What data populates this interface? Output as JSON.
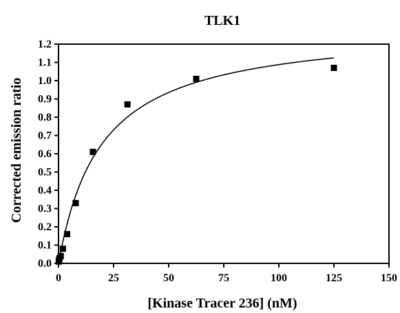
{
  "chart_data": {
    "type": "scatter",
    "title": "TLK1",
    "xlabel": "[Kinase Tracer 236] (nM)",
    "ylabel": "Corrected emission ratio",
    "xlim": [
      0,
      150
    ],
    "ylim": [
      0,
      1.2
    ],
    "x_ticks": [
      "0",
      "25",
      "50",
      "75",
      "100",
      "125",
      "150"
    ],
    "y_ticks": [
      "0.0",
      "0.1",
      "0.2",
      "0.3",
      "0.4",
      "0.5",
      "0.6",
      "0.7",
      "0.8",
      "0.9",
      "1.0",
      "1.1",
      "1.2"
    ],
    "grid": false,
    "series": [
      {
        "marker": "square",
        "color": "#000000",
        "points": [
          {
            "x": 0.1,
            "y": 0.01
          },
          {
            "x": 0.25,
            "y": 0.02
          },
          {
            "x": 0.5,
            "y": 0.03
          },
          {
            "x": 1.0,
            "y": 0.04
          },
          {
            "x": 2.0,
            "y": 0.08
          },
          {
            "x": 3.9,
            "y": 0.16
          },
          {
            "x": 7.8,
            "y": 0.33
          },
          {
            "x": 15.6,
            "y": 0.61
          },
          {
            "x": 31.3,
            "y": 0.87
          },
          {
            "x": 62.5,
            "y": 1.01
          },
          {
            "x": 125,
            "y": 1.07
          }
        ]
      }
    ],
    "fit_curve": {
      "model": "one-site binding",
      "bmax": 1.3,
      "kd": 19.5,
      "x_range": [
        0,
        125
      ]
    }
  }
}
